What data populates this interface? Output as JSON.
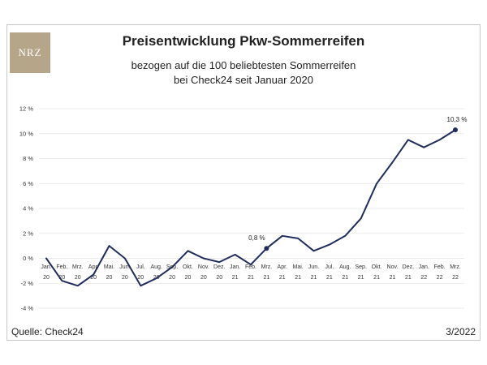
{
  "logo": {
    "text": "NRZ"
  },
  "header": {
    "title": "Preisentwicklung Pkw-Sommerreifen",
    "subtitle_line1": "bezogen auf die 100 beliebtesten Sommerreifen",
    "subtitle_line2": "bei Check24 seit Januar 2020"
  },
  "footer": {
    "source": "Quelle: Check24",
    "date": "3/2022"
  },
  "chart_data": {
    "type": "line",
    "title": "Preisentwicklung Pkw-Sommerreifen",
    "ylim": [
      -4,
      12
    ],
    "yticks": [
      {
        "value": 12,
        "label": "12 %"
      },
      {
        "value": 10,
        "label": "10 %"
      },
      {
        "value": 8,
        "label": "8 %"
      },
      {
        "value": 6,
        "label": "6 %"
      },
      {
        "value": 4,
        "label": "4 %"
      },
      {
        "value": 2,
        "label": "2 %"
      },
      {
        "value": 0,
        "label": "0 %"
      },
      {
        "value": -2,
        "label": "-2 %"
      },
      {
        "value": -4,
        "label": "-4 %"
      }
    ],
    "grid": "horizontal",
    "categories": [
      {
        "month": "Jan.",
        "year": "20"
      },
      {
        "month": "Feb.",
        "year": "20"
      },
      {
        "month": "Mrz.",
        "year": "20"
      },
      {
        "month": "Apr.",
        "year": "20"
      },
      {
        "month": "Mai.",
        "year": "20"
      },
      {
        "month": "Jun.",
        "year": "20"
      },
      {
        "month": "Jul.",
        "year": "20"
      },
      {
        "month": "Aug.",
        "year": "20"
      },
      {
        "month": "Sep.",
        "year": "20"
      },
      {
        "month": "Okt.",
        "year": "20"
      },
      {
        "month": "Nov.",
        "year": "20"
      },
      {
        "month": "Dez.",
        "year": "20"
      },
      {
        "month": "Jan.",
        "year": "21"
      },
      {
        "month": "Feb.",
        "year": "21"
      },
      {
        "month": "Mrz.",
        "year": "21"
      },
      {
        "month": "Apr.",
        "year": "21"
      },
      {
        "month": "Mai.",
        "year": "21"
      },
      {
        "month": "Jun.",
        "year": "21"
      },
      {
        "month": "Jul.",
        "year": "21"
      },
      {
        "month": "Aug.",
        "year": "21"
      },
      {
        "month": "Sep.",
        "year": "21"
      },
      {
        "month": "Okt.",
        "year": "21"
      },
      {
        "month": "Nov.",
        "year": "21"
      },
      {
        "month": "Dez.",
        "year": "21"
      },
      {
        "month": "Jan.",
        "year": "22"
      },
      {
        "month": "Feb.",
        "year": "22"
      },
      {
        "month": "Mrz.",
        "year": "22"
      }
    ],
    "series": [
      {
        "color": "#1f2d5c",
        "values": [
          0,
          -1.8,
          -2.2,
          -1.3,
          1.0,
          0.0,
          -2.2,
          -1.6,
          -0.7,
          0.6,
          0.0,
          -0.3,
          0.3,
          -0.5,
          0.8,
          1.8,
          1.6,
          0.6,
          1.1,
          1.8,
          3.2,
          6.0,
          7.7,
          9.5,
          8.9,
          9.5,
          10.3
        ]
      }
    ],
    "annotations": [
      {
        "index": 14,
        "label": "0,8 %"
      },
      {
        "index": 26,
        "label": "10,3 %"
      }
    ]
  }
}
